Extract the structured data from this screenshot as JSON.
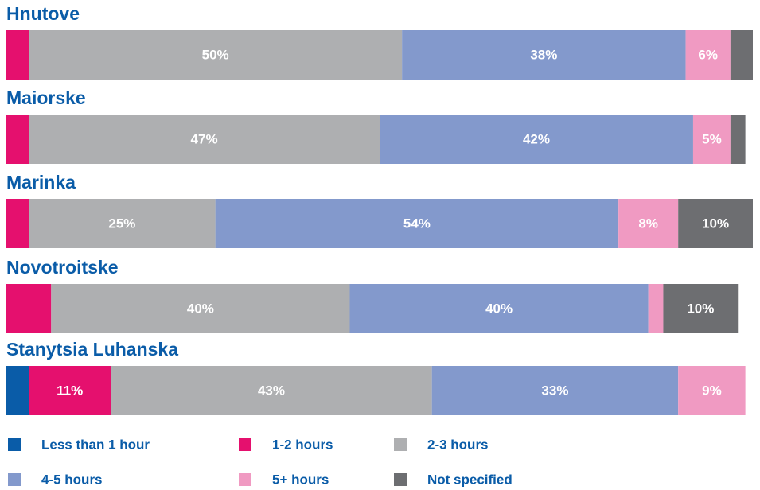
{
  "chart_data": {
    "type": "stacked-bar-horizontal",
    "categories": [
      "Hnutove",
      "Maiorske",
      "Marinka",
      "Novotroitske",
      "Stanytsia Luhanska"
    ],
    "xlim": [
      0,
      100
    ],
    "series": [
      {
        "name": "Less than 1 hour",
        "color": "#0a5ca8",
        "values": [
          null,
          null,
          null,
          null,
          3
        ],
        "value_labels": [
          null,
          null,
          null,
          null,
          null
        ]
      },
      {
        "name": "1-2 hours",
        "color": "#e5106e",
        "values": [
          3,
          3,
          3,
          6,
          11
        ],
        "value_labels": [
          null,
          null,
          null,
          null,
          "11%"
        ]
      },
      {
        "name": "2-3 hours",
        "color": "#aeafb1",
        "values": [
          50,
          47,
          25,
          40,
          43
        ],
        "value_labels": [
          "50%",
          "47%",
          "25%",
          "40%",
          "43%"
        ]
      },
      {
        "name": "4-5 hours",
        "color": "#8399cc",
        "values": [
          38,
          42,
          54,
          40,
          33
        ],
        "value_labels": [
          "38%",
          "42%",
          "54%",
          "40%",
          "33%"
        ]
      },
      {
        "name": "5+ hours",
        "color": "#f09ac2",
        "values": [
          6,
          5,
          8,
          2,
          9
        ],
        "value_labels": [
          "6%",
          "5%",
          "8%",
          null,
          "9%"
        ]
      },
      {
        "name": "Not specified",
        "color": "#6d6e71",
        "values": [
          3,
          2,
          10,
          10,
          null
        ],
        "value_labels": [
          null,
          null,
          "10%",
          "10%",
          null
        ]
      }
    ]
  }
}
